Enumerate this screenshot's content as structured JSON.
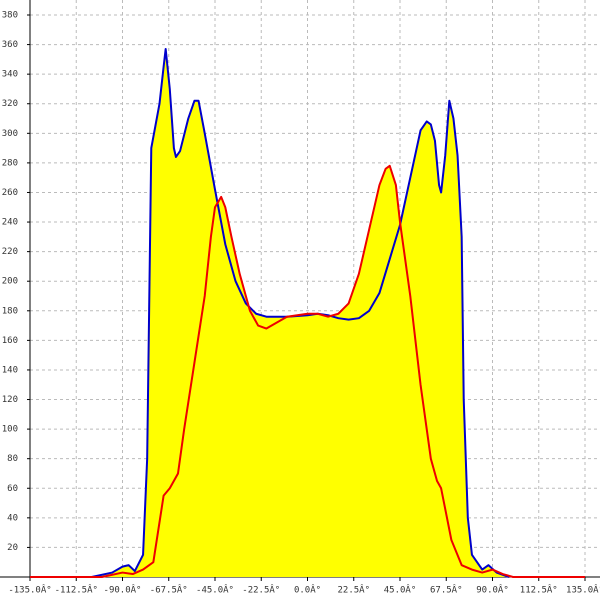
{
  "chart_data": {
    "type": "line",
    "fill": "#ffff00",
    "grid": true,
    "xlim": [
      -135,
      135
    ],
    "ylim": [
      0,
      380
    ],
    "xticks": [
      {
        "value": -135,
        "label": "-135.0Â°"
      },
      {
        "value": -112.5,
        "label": "-112.5Â°"
      },
      {
        "value": -90,
        "label": "-90.0Â°"
      },
      {
        "value": -67.5,
        "label": "-67.5Â°"
      },
      {
        "value": -45,
        "label": "-45.0Â°"
      },
      {
        "value": -22.5,
        "label": "-22.5Â°"
      },
      {
        "value": 0,
        "label": "0.0Â°"
      },
      {
        "value": 22.5,
        "label": "22.5Â°"
      },
      {
        "value": 45,
        "label": "45.0Â°"
      },
      {
        "value": 67.5,
        "label": "67.5Â°"
      },
      {
        "value": 90,
        "label": "90.0Â°"
      },
      {
        "value": 112.5,
        "label": "112.5Â°"
      },
      {
        "value": 135,
        "label": "135.0Â°"
      }
    ],
    "yticks": [
      20,
      40,
      60,
      80,
      100,
      120,
      140,
      160,
      180,
      200,
      220,
      240,
      260,
      280,
      300,
      320,
      340,
      360,
      380
    ],
    "series": [
      {
        "name": "blue",
        "color": "#0000cc",
        "x": [
          -105,
          -95,
          -90,
          -87,
          -84,
          -80,
          -78,
          -76,
          -74,
          -72,
          -70,
          -69,
          -67,
          -65,
          -64,
          -62,
          -58,
          -55,
          -53,
          -50,
          -45,
          -40,
          -35,
          -30,
          -25,
          -20,
          -10,
          0,
          5,
          10,
          15,
          20,
          25,
          30,
          35,
          40,
          45,
          50,
          55,
          58,
          60,
          62,
          64,
          65,
          67,
          69,
          71,
          73,
          75,
          76,
          78,
          80,
          85,
          88,
          92,
          98
        ],
        "values": [
          0,
          3,
          7,
          8,
          4,
          15,
          80,
          290,
          305,
          320,
          345,
          357,
          330,
          290,
          284,
          288,
          310,
          322,
          322,
          300,
          262,
          225,
          200,
          185,
          178,
          176,
          176,
          177,
          178,
          177,
          175,
          174,
          175,
          180,
          192,
          215,
          238,
          270,
          302,
          308,
          306,
          295,
          265,
          260,
          285,
          322,
          310,
          285,
          230,
          120,
          40,
          15,
          5,
          8,
          3,
          0
        ]
      },
      {
        "name": "red",
        "color": "#ee0000",
        "x": [
          -135,
          -100,
          -90,
          -85,
          -80,
          -75,
          -70,
          -67,
          -63,
          -60,
          -55,
          -50,
          -47,
          -45,
          -42,
          -40,
          -37,
          -33,
          -28,
          -24,
          -20,
          -15,
          -10,
          -5,
          0,
          5,
          10,
          15,
          20,
          25,
          30,
          35,
          38,
          40,
          43,
          45,
          50,
          55,
          60,
          63,
          65,
          70,
          75,
          80,
          85,
          90,
          95,
          100,
          135
        ],
        "values": [
          0,
          0,
          3,
          2,
          5,
          10,
          55,
          60,
          70,
          100,
          145,
          190,
          230,
          250,
          257,
          250,
          230,
          205,
          180,
          170,
          168,
          172,
          176,
          177,
          178,
          178,
          176,
          178,
          185,
          205,
          235,
          265,
          276,
          278,
          265,
          240,
          190,
          130,
          80,
          65,
          60,
          25,
          8,
          5,
          3,
          5,
          2,
          0,
          0
        ]
      }
    ]
  }
}
